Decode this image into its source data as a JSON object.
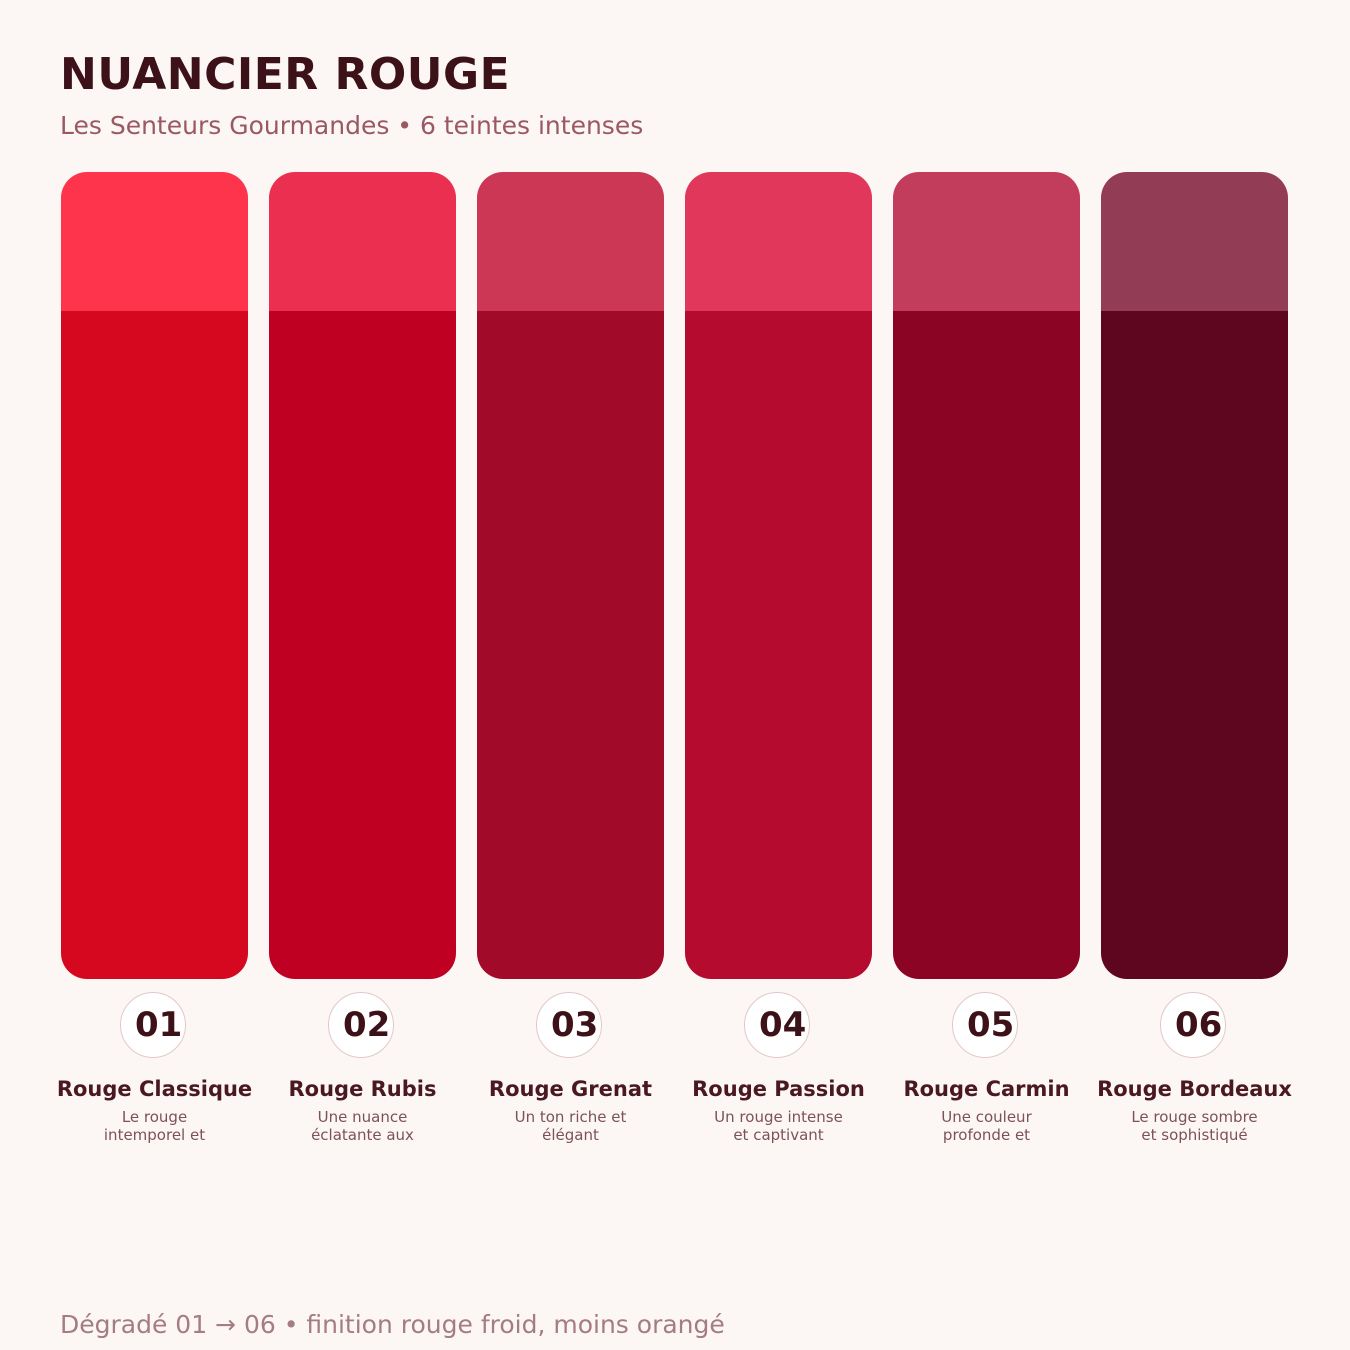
{
  "header": {
    "title": "NUANCIER ROUGE",
    "subtitle": "Les Senteurs Gourmandes • 6 teintes intenses"
  },
  "swatches": [
    {
      "number": "01",
      "name": "Rouge Classique",
      "description": "Le rouge intemporel et",
      "tint_color": "#fe344c",
      "base_color": "#d50820"
    },
    {
      "number": "02",
      "name": "Rouge Rubis",
      "description": "Une nuance éclatante aux",
      "tint_color": "#ea2f50",
      "base_color": "#bf0023"
    },
    {
      "number": "03",
      "name": "Rouge Grenat",
      "description": "Un ton riche et élégant",
      "tint_color": "#cb3755",
      "base_color": "#a10a28"
    },
    {
      "number": "04",
      "name": "Rouge Passion",
      "description": "Un rouge intense et captivant",
      "tint_color": "#e0375a",
      "base_color": "#b50b2e"
    },
    {
      "number": "05",
      "name": "Rouge Carmin",
      "description": "Une couleur profonde et",
      "tint_color": "#c23d5b",
      "base_color": "#8c0424"
    },
    {
      "number": "06",
      "name": "Rouge Bordeaux",
      "description": "Le rouge sombre et sophistiqué",
      "tint_color": "#933c55",
      "base_color": "#5e0620"
    }
  ],
  "footer": {
    "note": "Dégradé 01 → 06 • finition rouge froid, moins orangé"
  }
}
